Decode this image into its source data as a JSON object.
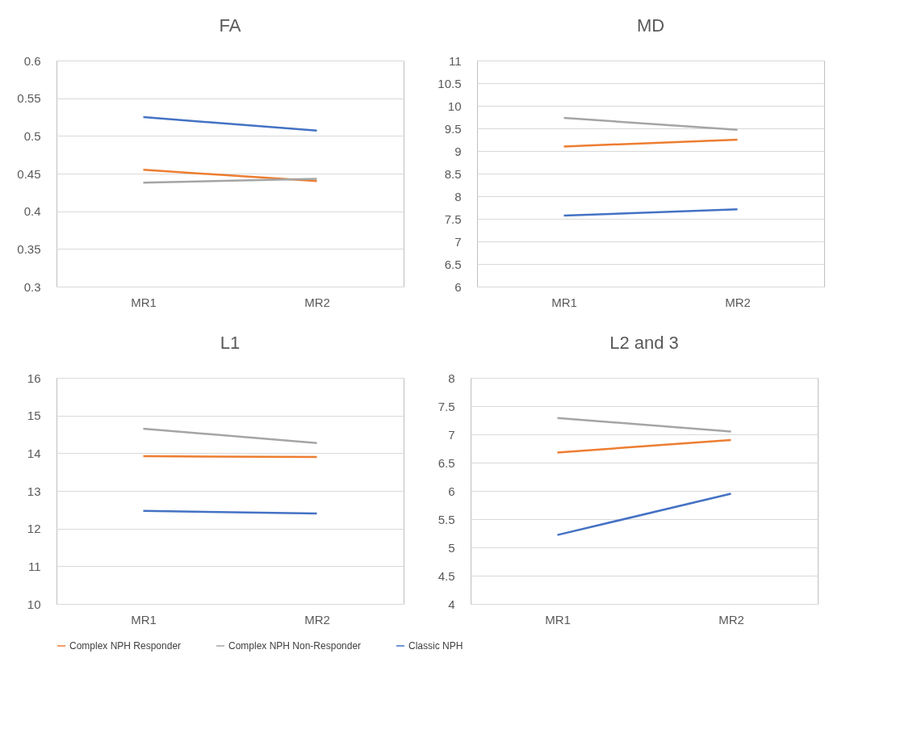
{
  "chart_data": [
    {
      "type": "line",
      "title": "FA",
      "categories": [
        "MR1",
        "MR2"
      ],
      "ylim": [
        0.3,
        0.6
      ],
      "yticks": [
        0.3,
        0.35,
        0.4,
        0.45,
        0.5,
        0.55,
        0.6
      ],
      "grid": "y",
      "marker": "none",
      "legend": "bottom",
      "series": [
        {
          "name": "Complex NPH Responder",
          "color": "#ed7d31",
          "values": [
            0.455,
            0.44
          ]
        },
        {
          "name": "Complex NPH Non-Responder",
          "color": "#a5a5a5",
          "values": [
            0.438,
            0.443
          ]
        },
        {
          "name": "Classic NPH",
          "color": "#4472c4",
          "values": [
            0.525,
            0.507
          ]
        }
      ]
    },
    {
      "type": "line",
      "title": "MD",
      "categories": [
        "MR1",
        "MR2"
      ],
      "ylim": [
        6,
        11
      ],
      "yticks": [
        6,
        6.5,
        7,
        7.5,
        8,
        8.5,
        9,
        9.5,
        10,
        10.5,
        11
      ],
      "grid": "y",
      "marker": "none",
      "legend": "bottom",
      "series": [
        {
          "name": "Complex NPH Responder",
          "color": "#ed7d31",
          "values": [
            9.1,
            9.25
          ]
        },
        {
          "name": "Complex NPH Non-Responder",
          "color": "#a5a5a5",
          "values": [
            9.73,
            9.47
          ]
        },
        {
          "name": "Classic NPH",
          "color": "#4472c4",
          "values": [
            7.57,
            7.71
          ]
        }
      ]
    },
    {
      "type": "line",
      "title": "L1",
      "categories": [
        "MR1",
        "MR2"
      ],
      "ylim": [
        10,
        16
      ],
      "yticks": [
        10,
        11,
        12,
        13,
        14,
        15,
        16
      ],
      "grid": "y",
      "marker": "none",
      "legend": "bottom",
      "series": [
        {
          "name": "Complex NPH Responder",
          "color": "#ed7d31",
          "values": [
            13.92,
            13.9
          ]
        },
        {
          "name": "Complex NPH Non-Responder",
          "color": "#a5a5a5",
          "values": [
            14.65,
            14.27
          ]
        },
        {
          "name": "Classic NPH",
          "color": "#4472c4",
          "values": [
            12.47,
            12.4
          ]
        }
      ]
    },
    {
      "type": "line",
      "title": "L2 and 3",
      "categories": [
        "MR1",
        "MR2"
      ],
      "ylim": [
        4,
        8
      ],
      "yticks": [
        4,
        4.5,
        5,
        5.5,
        6,
        6.5,
        7,
        7.5,
        8
      ],
      "grid": "y",
      "marker": "none",
      "legend": "bottom",
      "series": [
        {
          "name": "Complex NPH Responder",
          "color": "#ed7d31",
          "values": [
            6.68,
            6.9
          ]
        },
        {
          "name": "Complex NPH Non-Responder",
          "color": "#a5a5a5",
          "values": [
            7.29,
            7.05
          ]
        },
        {
          "name": "Classic NPH",
          "color": "#4472c4",
          "values": [
            5.22,
            5.95
          ]
        }
      ]
    }
  ]
}
